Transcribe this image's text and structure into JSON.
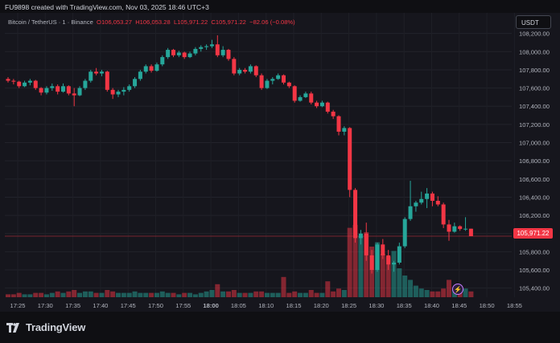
{
  "caption": "FU9898 created with TradingView.com, Nov 03, 2025 18:46 UTC+3",
  "legend": {
    "symbol": "Bitcoin / TetherUS · 1 · Binance",
    "open": "O106,053.27",
    "high": "H106,053.28",
    "low": "L105,971.22",
    "close": "C105,971.22",
    "change": "−82.06 (−0.08%)"
  },
  "currency_button": "USDT",
  "last_price_label": "105,971.22",
  "brand": "TradingView",
  "colors": {
    "up": "#26a69a",
    "down": "#f23645",
    "background": "#16161d",
    "price_line": "#f23645"
  },
  "chart_data": {
    "type": "candlestick",
    "interval": "1 minute",
    "x_ticks": [
      "17:25",
      "17:30",
      "17:35",
      "17:40",
      "17:45",
      "17:50",
      "17:55",
      "18:00",
      "18:05",
      "18:10",
      "18:15",
      "18:20",
      "18:25",
      "18:30",
      "18:35",
      "18:40",
      "18:45",
      "18:50",
      "18:55"
    ],
    "y_ticks": [
      "105,400.00",
      "105,600.00",
      "105,800.00",
      "106,000.00",
      "106,200.00",
      "106,400.00",
      "106,600.00",
      "106,800.00",
      "107,000.00",
      "107,200.00",
      "107,400.00",
      "107,600.00",
      "107,800.00",
      "108,000.00",
      "108,200.00"
    ],
    "ylim": [
      105300,
      108250
    ],
    "last_price": 105971.22,
    "candles": [
      {
        "o": 107700,
        "h": 107720,
        "l": 107660,
        "c": 107680,
        "v": 2
      },
      {
        "o": 107680,
        "h": 107700,
        "l": 107640,
        "c": 107670,
        "v": 2
      },
      {
        "o": 107670,
        "h": 107680,
        "l": 107600,
        "c": 107620,
        "v": 3
      },
      {
        "o": 107620,
        "h": 107680,
        "l": 107610,
        "c": 107660,
        "v": 2
      },
      {
        "o": 107660,
        "h": 107700,
        "l": 107630,
        "c": 107680,
        "v": 2
      },
      {
        "o": 107680,
        "h": 107690,
        "l": 107580,
        "c": 107600,
        "v": 3
      },
      {
        "o": 107600,
        "h": 107610,
        "l": 107520,
        "c": 107550,
        "v": 3
      },
      {
        "o": 107550,
        "h": 107620,
        "l": 107530,
        "c": 107600,
        "v": 2
      },
      {
        "o": 107600,
        "h": 107650,
        "l": 107570,
        "c": 107620,
        "v": 3
      },
      {
        "o": 107620,
        "h": 107640,
        "l": 107530,
        "c": 107560,
        "v": 4
      },
      {
        "o": 107560,
        "h": 107650,
        "l": 107550,
        "c": 107620,
        "v": 3
      },
      {
        "o": 107620,
        "h": 107630,
        "l": 107520,
        "c": 107540,
        "v": 4
      },
      {
        "o": 107540,
        "h": 107600,
        "l": 107400,
        "c": 107520,
        "v": 5
      },
      {
        "o": 107520,
        "h": 107620,
        "l": 107510,
        "c": 107600,
        "v": 3
      },
      {
        "o": 107600,
        "h": 107700,
        "l": 107580,
        "c": 107680,
        "v": 4
      },
      {
        "o": 107680,
        "h": 107800,
        "l": 107660,
        "c": 107780,
        "v": 4
      },
      {
        "o": 107780,
        "h": 107820,
        "l": 107740,
        "c": 107760,
        "v": 3
      },
      {
        "o": 107760,
        "h": 107800,
        "l": 107730,
        "c": 107780,
        "v": 3
      },
      {
        "o": 107780,
        "h": 107790,
        "l": 107560,
        "c": 107580,
        "v": 5
      },
      {
        "o": 107580,
        "h": 107600,
        "l": 107480,
        "c": 107530,
        "v": 4
      },
      {
        "o": 107530,
        "h": 107580,
        "l": 107500,
        "c": 107560,
        "v": 3
      },
      {
        "o": 107560,
        "h": 107610,
        "l": 107520,
        "c": 107580,
        "v": 3
      },
      {
        "o": 107580,
        "h": 107640,
        "l": 107560,
        "c": 107620,
        "v": 3
      },
      {
        "o": 107620,
        "h": 107720,
        "l": 107600,
        "c": 107700,
        "v": 4
      },
      {
        "o": 107700,
        "h": 107800,
        "l": 107680,
        "c": 107780,
        "v": 3
      },
      {
        "o": 107780,
        "h": 107860,
        "l": 107760,
        "c": 107840,
        "v": 3
      },
      {
        "o": 107840,
        "h": 107860,
        "l": 107770,
        "c": 107790,
        "v": 3
      },
      {
        "o": 107790,
        "h": 107880,
        "l": 107780,
        "c": 107860,
        "v": 3
      },
      {
        "o": 107860,
        "h": 107960,
        "l": 107840,
        "c": 107940,
        "v": 4
      },
      {
        "o": 107940,
        "h": 108040,
        "l": 107920,
        "c": 108020,
        "v": 3
      },
      {
        "o": 108020,
        "h": 108030,
        "l": 107940,
        "c": 107960,
        "v": 3
      },
      {
        "o": 107960,
        "h": 108010,
        "l": 107940,
        "c": 107990,
        "v": 2
      },
      {
        "o": 107990,
        "h": 108000,
        "l": 107920,
        "c": 107940,
        "v": 3
      },
      {
        "o": 107940,
        "h": 108000,
        "l": 107930,
        "c": 107980,
        "v": 3
      },
      {
        "o": 107980,
        "h": 108050,
        "l": 107960,
        "c": 108030,
        "v": 2
      },
      {
        "o": 108030,
        "h": 108070,
        "l": 108000,
        "c": 108050,
        "v": 3
      },
      {
        "o": 108050,
        "h": 108080,
        "l": 108020,
        "c": 108060,
        "v": 4
      },
      {
        "o": 108060,
        "h": 108130,
        "l": 108040,
        "c": 108080,
        "v": 5
      },
      {
        "o": 108080,
        "h": 108180,
        "l": 107940,
        "c": 107960,
        "v": 9
      },
      {
        "o": 107960,
        "h": 108060,
        "l": 107940,
        "c": 108020,
        "v": 4
      },
      {
        "o": 108020,
        "h": 108030,
        "l": 107900,
        "c": 107920,
        "v": 4
      },
      {
        "o": 107920,
        "h": 107940,
        "l": 107740,
        "c": 107760,
        "v": 5
      },
      {
        "o": 107760,
        "h": 107820,
        "l": 107740,
        "c": 107800,
        "v": 3
      },
      {
        "o": 107800,
        "h": 107820,
        "l": 107760,
        "c": 107780,
        "v": 3
      },
      {
        "o": 107780,
        "h": 107860,
        "l": 107760,
        "c": 107840,
        "v": 3
      },
      {
        "o": 107840,
        "h": 107850,
        "l": 107720,
        "c": 107740,
        "v": 4
      },
      {
        "o": 107740,
        "h": 107760,
        "l": 107580,
        "c": 107600,
        "v": 4
      },
      {
        "o": 107600,
        "h": 107700,
        "l": 107590,
        "c": 107680,
        "v": 3
      },
      {
        "o": 107680,
        "h": 107720,
        "l": 107640,
        "c": 107700,
        "v": 3
      },
      {
        "o": 107700,
        "h": 107760,
        "l": 107690,
        "c": 107740,
        "v": 3
      },
      {
        "o": 107740,
        "h": 107750,
        "l": 107640,
        "c": 107660,
        "v": 14
      },
      {
        "o": 107660,
        "h": 107670,
        "l": 107600,
        "c": 107620,
        "v": 3
      },
      {
        "o": 107620,
        "h": 107630,
        "l": 107440,
        "c": 107460,
        "v": 4
      },
      {
        "o": 107460,
        "h": 107520,
        "l": 107450,
        "c": 107500,
        "v": 3
      },
      {
        "o": 107500,
        "h": 107560,
        "l": 107490,
        "c": 107540,
        "v": 3
      },
      {
        "o": 107540,
        "h": 107560,
        "l": 107420,
        "c": 107440,
        "v": 5
      },
      {
        "o": 107440,
        "h": 107460,
        "l": 107380,
        "c": 107400,
        "v": 3
      },
      {
        "o": 107400,
        "h": 107460,
        "l": 107390,
        "c": 107440,
        "v": 3
      },
      {
        "o": 107440,
        "h": 107450,
        "l": 107320,
        "c": 107340,
        "v": 11
      },
      {
        "o": 107340,
        "h": 107360,
        "l": 107260,
        "c": 107290,
        "v": 4
      },
      {
        "o": 107290,
        "h": 107300,
        "l": 107080,
        "c": 107120,
        "v": 6
      },
      {
        "o": 107120,
        "h": 107180,
        "l": 107080,
        "c": 107160,
        "v": 5
      },
      {
        "o": 107160,
        "h": 107170,
        "l": 106400,
        "c": 106480,
        "v": 48
      },
      {
        "o": 106480,
        "h": 106500,
        "l": 105900,
        "c": 105950,
        "v": 50
      },
      {
        "o": 105950,
        "h": 106040,
        "l": 105880,
        "c": 106000,
        "v": 42
      },
      {
        "o": 106000,
        "h": 106120,
        "l": 105700,
        "c": 105760,
        "v": 45
      },
      {
        "o": 105760,
        "h": 105820,
        "l": 105560,
        "c": 105600,
        "v": 35
      },
      {
        "o": 105600,
        "h": 105900,
        "l": 105580,
        "c": 105880,
        "v": 38
      },
      {
        "o": 105880,
        "h": 105940,
        "l": 105720,
        "c": 105760,
        "v": 30
      },
      {
        "o": 105760,
        "h": 105820,
        "l": 105600,
        "c": 105660,
        "v": 28
      },
      {
        "o": 105660,
        "h": 105700,
        "l": 105580,
        "c": 105680,
        "v": 32
      },
      {
        "o": 105680,
        "h": 105900,
        "l": 105660,
        "c": 105860,
        "v": 20
      },
      {
        "o": 105860,
        "h": 106180,
        "l": 105840,
        "c": 106160,
        "v": 15
      },
      {
        "o": 106160,
        "h": 106580,
        "l": 106140,
        "c": 106300,
        "v": 12
      },
      {
        "o": 106300,
        "h": 106360,
        "l": 106240,
        "c": 106340,
        "v": 8
      },
      {
        "o": 106340,
        "h": 106460,
        "l": 106320,
        "c": 106380,
        "v": 6
      },
      {
        "o": 106380,
        "h": 106500,
        "l": 106280,
        "c": 106440,
        "v": 5
      },
      {
        "o": 106440,
        "h": 106460,
        "l": 106300,
        "c": 106360,
        "v": 4
      },
      {
        "o": 106360,
        "h": 106410,
        "l": 106300,
        "c": 106320,
        "v": 4
      },
      {
        "o": 106320,
        "h": 106340,
        "l": 106060,
        "c": 106100,
        "v": 6
      },
      {
        "o": 106100,
        "h": 106150,
        "l": 105920,
        "c": 106020,
        "v": 12
      },
      {
        "o": 106020,
        "h": 106120,
        "l": 106010,
        "c": 106080,
        "v": 6
      },
      {
        "o": 106080,
        "h": 106090,
        "l": 106030,
        "c": 106050,
        "v": 5
      },
      {
        "o": 106050,
        "h": 106180,
        "l": 106030,
        "c": 106053.27,
        "v": 6
      },
      {
        "o": 106053.27,
        "h": 106053.28,
        "l": 105971.22,
        "c": 105971.22,
        "v": 4
      }
    ]
  }
}
